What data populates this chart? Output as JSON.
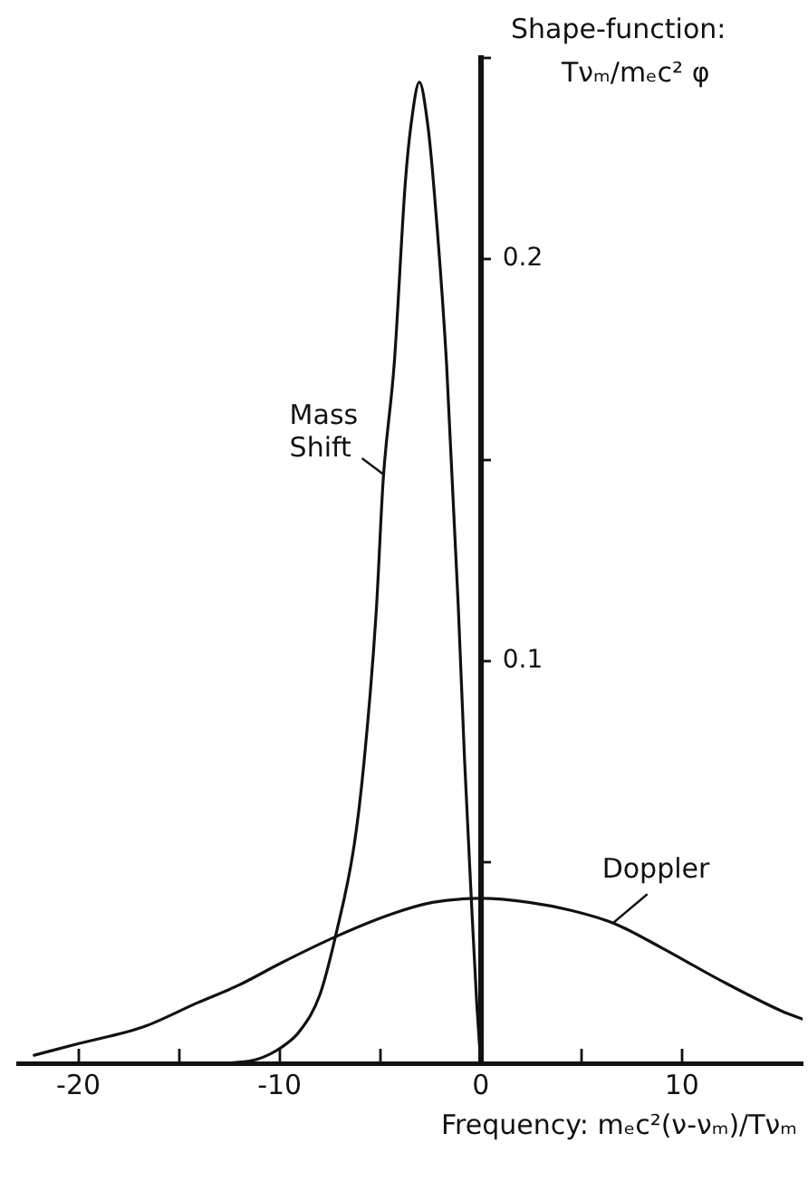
{
  "chart_data": {
    "type": "line",
    "xlabel": "Frequency: mₑc²(ν-νₘ)/Tνₘ",
    "ylabel": "Shape-function: Tνₘ/mₑc² φ",
    "series": [
      {
        "name": "Mass Shift",
        "color": "#111111",
        "x": [
          -12.5,
          -11.1,
          -9.9,
          -9.0,
          -8.0,
          -7.2,
          -6.3,
          -5.8,
          -5.2,
          -4.85,
          -4.3,
          -3.75,
          -3.45,
          -3.05,
          -2.65,
          -2.35,
          -1.7,
          -1.12,
          -0.8,
          -0.45,
          -0.2,
          0
        ],
        "values": [
          0,
          0.001,
          0.004,
          0.008,
          0.017,
          0.032,
          0.054,
          0.075,
          0.112,
          0.145,
          0.174,
          0.219,
          0.234,
          0.244,
          0.234,
          0.219,
          0.174,
          0.114,
          0.075,
          0.039,
          0.015,
          0
        ]
      },
      {
        "name": "Doppler",
        "color": "#111111",
        "x": [
          -22.2,
          -19.9,
          -16.8,
          -14.1,
          -12.0,
          -9.9,
          -7.2,
          -4.5,
          -2.4,
          0,
          2.4,
          4.5,
          6.67,
          9.0,
          12.0,
          15.0,
          16.0
        ],
        "values": [
          0.002,
          0.005,
          0.009,
          0.015,
          0.0195,
          0.025,
          0.0315,
          0.037,
          0.04,
          0.041,
          0.04,
          0.038,
          0.0347,
          0.0287,
          0.0204,
          0.0129,
          0.011
        ]
      }
    ],
    "xlim": [
      -23,
      16
    ],
    "xticks": [
      -20,
      {
        "value": -15,
        "label": null
      },
      -10,
      {
        "value": -5,
        "label": null
      },
      0,
      {
        "value": 5,
        "label": null
      },
      10
    ],
    "ylim": [
      0,
      0.25
    ],
    "yticks": [
      {
        "value": 0.05,
        "label": null
      },
      0.1,
      {
        "value": 0.15,
        "label": null
      },
      0.2,
      {
        "value": 0.25,
        "label": null
      }
    ],
    "grid": false,
    "legend": false,
    "line_style": "solid"
  }
}
